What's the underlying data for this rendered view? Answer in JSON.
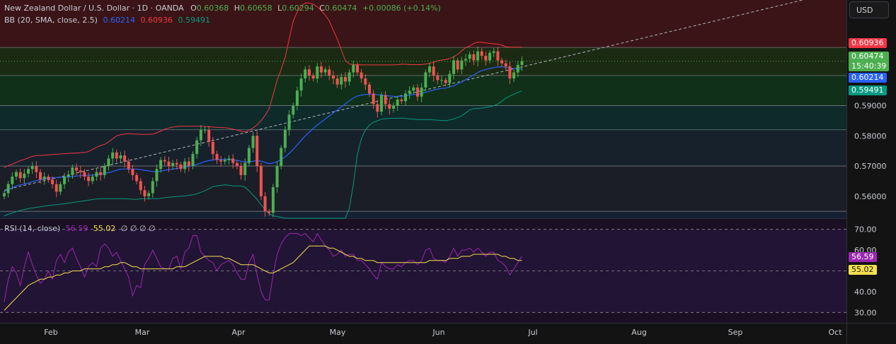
{
  "header": {
    "symbol_line": "New Zealand Dollar / U.S. Dollar · 1D · OANDA",
    "o_label": "O",
    "o_value": "0.60368",
    "h_label": "H",
    "h_value": "0.60658",
    "l_label": "L",
    "l_value": "0.60294",
    "c_label": "C",
    "c_value": "0.60474",
    "change": "+0.00086 (+0.14%)"
  },
  "bb_legend": {
    "label": "BB (20, SMA, close, 2.5)",
    "basis": "0.60214",
    "upper": "0.60936",
    "lower": "0.59491",
    "basis_color": "#2962ff",
    "upper_color": "#f23645",
    "lower_color": "#089981"
  },
  "rsi_legend": {
    "label": "RSI (14, close)",
    "rsi": "56.59",
    "ma": "55.02",
    "tail": "∅ ∅ ∅ ∅",
    "rsi_color": "#9c27b0",
    "ma_color": "#f5e050"
  },
  "currency_button": "USD",
  "price_tags": {
    "upper": "0.60936",
    "last": "0.60474",
    "countdown": "15:40:39",
    "basis": "0.60214",
    "lower": "0.59491",
    "rsi": "56.59",
    "rsi_ma": "55.02"
  },
  "colors": {
    "background": "#131313",
    "up": "#4caf50",
    "down": "#ef5350",
    "grid": "#2a2e39"
  },
  "chart_data": [
    {
      "type": "candlestick",
      "title": "New Zealand Dollar / U.S. Dollar · 1D · OANDA",
      "price_axis_ticks": [
        "0.56000",
        "0.57000",
        "0.58000",
        "0.59000"
      ],
      "ylim": [
        0.5527,
        0.625
      ],
      "time_axis_ticks": [
        "Feb",
        "Mar",
        "Apr",
        "May",
        "Jun",
        "Jul",
        "Aug",
        "Sep",
        "Oct"
      ],
      "zones": [
        {
          "from": 0.6093,
          "to": 0.625,
          "color": "#3a1416"
        },
        {
          "from": 0.6,
          "to": 0.6093,
          "color": "#1b2a13"
        },
        {
          "from": 0.59,
          "to": 0.6,
          "color": "#10301a"
        },
        {
          "from": 0.582,
          "to": 0.59,
          "color": "#0e2a2a"
        },
        {
          "from": 0.57,
          "to": 0.582,
          "color": "#16212b"
        },
        {
          "from": 0.555,
          "to": 0.57,
          "color": "#1b1e26"
        },
        {
          "from": 0.5527,
          "to": 0.555,
          "color": "#152032"
        }
      ],
      "horizontal_levels": [
        0.6093,
        0.6,
        0.59,
        0.582,
        0.57,
        0.555
      ],
      "trendline": {
        "from": [
          0,
          0.562
        ],
        "to": [
          199,
          0.625
        ]
      },
      "closes": [
        0.561,
        0.564,
        0.5665,
        0.568,
        0.566,
        0.5675,
        0.569,
        0.57,
        0.568,
        0.5655,
        0.5665,
        0.5655,
        0.564,
        0.5615,
        0.564,
        0.5665,
        0.567,
        0.5695,
        0.5685,
        0.568,
        0.5665,
        0.565,
        0.5665,
        0.568,
        0.567,
        0.57,
        0.5725,
        0.5745,
        0.5725,
        0.5735,
        0.5715,
        0.569,
        0.567,
        0.565,
        0.562,
        0.56,
        0.561,
        0.565,
        0.569,
        0.572,
        0.5715,
        0.57,
        0.571,
        0.5705,
        0.569,
        0.5715,
        0.57,
        0.574,
        0.5785,
        0.582,
        0.582,
        0.578,
        0.574,
        0.572,
        0.5715,
        0.572,
        0.5725,
        0.571,
        0.57,
        0.567,
        0.571,
        0.576,
        0.58,
        0.57,
        0.56,
        0.555,
        0.5545,
        0.563,
        0.57,
        0.576,
        0.582,
        0.587,
        0.59,
        0.595,
        0.599,
        0.602,
        0.6,
        0.599,
        0.603,
        0.601,
        0.602,
        0.6,
        0.599,
        0.597,
        0.5995,
        0.598,
        0.601,
        0.6035,
        0.601,
        0.599,
        0.597,
        0.594,
        0.5905,
        0.588,
        0.5935,
        0.5905,
        0.589,
        0.59,
        0.592,
        0.5915,
        0.594,
        0.595,
        0.596,
        0.593,
        0.596,
        0.601,
        0.603,
        0.6,
        0.5985,
        0.5985,
        0.5975,
        0.6005,
        0.605,
        0.602,
        0.605,
        0.6055,
        0.607,
        0.605,
        0.608,
        0.6065,
        0.605,
        0.6075,
        0.608,
        0.605,
        0.604,
        0.603,
        0.599,
        0.601,
        0.6035,
        0.6047
      ],
      "upper_band": [
        0.5695,
        0.5702,
        0.5706,
        0.5712,
        0.5718,
        0.5722,
        0.5727,
        0.5732,
        0.5735,
        0.5735,
        0.5736,
        0.5737,
        0.5738,
        0.5739,
        0.574,
        0.5741,
        0.5742,
        0.5743,
        0.5743,
        0.5744,
        0.5745,
        0.5748,
        0.5755,
        0.5762,
        0.5768,
        0.5772,
        0.578,
        0.579,
        0.58,
        0.5804,
        0.5806,
        0.5807,
        0.5806,
        0.5806,
        0.5805,
        0.5805,
        0.5805,
        0.5806,
        0.581,
        0.5816,
        0.5822,
        0.5826,
        0.5829,
        0.5831,
        0.5832,
        0.5832,
        0.5832,
        0.5832,
        0.5832,
        0.5832,
        0.5831,
        0.583,
        0.5829,
        0.5828,
        0.5827,
        0.5827,
        0.5825,
        0.5822,
        0.5819,
        0.5816,
        0.5813,
        0.5818,
        0.5826,
        0.5836,
        0.585,
        0.5868,
        0.589,
        0.5935,
        0.5985,
        0.602,
        0.606,
        0.612,
        0.618,
        0.621,
        0.623,
        0.624,
        0.624,
        0.6236,
        0.6228,
        0.6215,
        0.62,
        0.618,
        0.615,
        0.612,
        0.6085,
        0.605,
        0.6038,
        0.6036,
        0.6036,
        0.6035,
        0.6035,
        0.6035,
        0.6035,
        0.6035,
        0.6035,
        0.6035,
        0.6035,
        0.6035,
        0.6036,
        0.6037,
        0.6037,
        0.6036,
        0.6036,
        0.6036,
        0.6036,
        0.6038,
        0.604,
        0.6044,
        0.6049,
        0.6051,
        0.6053,
        0.6056,
        0.6062,
        0.607,
        0.6082,
        0.6092,
        0.6098,
        0.6106,
        0.611,
        0.611,
        0.6108,
        0.6106,
        0.6105,
        0.6104,
        0.61,
        0.6095,
        0.6094,
        0.6094,
        0.6094,
        0.6094
      ],
      "basis": [
        0.5615,
        0.5622,
        0.5628,
        0.5634,
        0.5638,
        0.564,
        0.5644,
        0.5648,
        0.5652,
        0.5655,
        0.5658,
        0.566,
        0.5661,
        0.5662,
        0.5663,
        0.5663,
        0.5664,
        0.5665,
        0.5667,
        0.5668,
        0.5669,
        0.5669,
        0.567,
        0.5672,
        0.5674,
        0.5676,
        0.5678,
        0.5682,
        0.5686,
        0.569,
        0.569,
        0.569,
        0.569,
        0.569,
        0.5688,
        0.5686,
        0.5684,
        0.5682,
        0.568,
        0.5683,
        0.5686,
        0.5688,
        0.569,
        0.5692,
        0.5694,
        0.5697,
        0.5699,
        0.5701,
        0.5705,
        0.571,
        0.5715,
        0.5718,
        0.572,
        0.5722,
        0.5722,
        0.5722,
        0.5721,
        0.572,
        0.5719,
        0.5716,
        0.5713,
        0.5714,
        0.5716,
        0.5718,
        0.5716,
        0.5712,
        0.5708,
        0.571,
        0.5715,
        0.5722,
        0.573,
        0.5742,
        0.5755,
        0.577,
        0.5785,
        0.58,
        0.5812,
        0.5824,
        0.5836,
        0.5846,
        0.5856,
        0.5866,
        0.5876,
        0.5886,
        0.5896,
        0.5906,
        0.5916,
        0.5926,
        0.5932,
        0.5935,
        0.5937,
        0.5938,
        0.5938,
        0.5936,
        0.5935,
        0.5934,
        0.5932,
        0.5931,
        0.593,
        0.5931,
        0.5933,
        0.5935,
        0.5937,
        0.5938,
        0.594,
        0.5944,
        0.5948,
        0.5952,
        0.5955,
        0.5957,
        0.5958,
        0.5962,
        0.5966,
        0.5972,
        0.5978,
        0.5986,
        0.5994,
        0.6002,
        0.601,
        0.6016,
        0.602,
        0.6023,
        0.6026,
        0.6028,
        0.6029,
        0.6027,
        0.6025,
        0.6023,
        0.6022,
        0.6021
      ],
      "lower_band": [
        0.5535,
        0.554,
        0.5545,
        0.5549,
        0.5553,
        0.5556,
        0.5559,
        0.5561,
        0.5563,
        0.5565,
        0.5567,
        0.5569,
        0.5571,
        0.5572,
        0.5573,
        0.5575,
        0.5577,
        0.5579,
        0.5581,
        0.5583,
        0.5585,
        0.5587,
        0.5589,
        0.5591,
        0.5592,
        0.5592,
        0.5592,
        0.5592,
        0.5592,
        0.5592,
        0.5592,
        0.5591,
        0.559,
        0.559,
        0.5591,
        0.5592,
        0.5592,
        0.5592,
        0.5592,
        0.5593,
        0.5595,
        0.5597,
        0.5598,
        0.5599,
        0.56,
        0.5601,
        0.5603,
        0.5605,
        0.5608,
        0.5613,
        0.5618,
        0.5625,
        0.5632,
        0.5634,
        0.5636,
        0.5638,
        0.5636,
        0.5634,
        0.5634,
        0.5634,
        0.563,
        0.5618,
        0.5604,
        0.559,
        0.5572,
        0.5556,
        0.5542,
        0.5535,
        0.5533,
        0.553,
        0.5528,
        0.5527,
        0.5527,
        0.5527,
        0.5527,
        0.5527,
        0.5527,
        0.5527,
        0.5527,
        0.5527,
        0.5527,
        0.5527,
        0.5527,
        0.5527,
        0.5527,
        0.5527,
        0.556,
        0.564,
        0.574,
        0.579,
        0.582,
        0.5835,
        0.5845,
        0.585,
        0.5855,
        0.5857,
        0.5858,
        0.5858,
        0.5858,
        0.5859,
        0.5858,
        0.5856,
        0.5855,
        0.5854,
        0.5854,
        0.5854,
        0.5854,
        0.5853,
        0.5852,
        0.5851,
        0.585,
        0.5853,
        0.5856,
        0.5861,
        0.5866,
        0.5876,
        0.5886,
        0.589,
        0.5891,
        0.5892,
        0.5894,
        0.5896,
        0.59,
        0.5905,
        0.5915,
        0.5925,
        0.5932,
        0.5938,
        0.5944,
        0.5949
      ]
    },
    {
      "type": "line",
      "title": "RSI (14, close)",
      "ylim": [
        25,
        75
      ],
      "y_ticks": [
        "70.00",
        "60.00",
        "40.00",
        "30.00"
      ],
      "reference_lines": [
        70,
        50,
        30
      ],
      "series": [
        {
          "name": "RSI",
          "color": "#9c27b0",
          "values": [
            35,
            46,
            52,
            49,
            43,
            52,
            59,
            53,
            48,
            44,
            46,
            50,
            46,
            55,
            58,
            54,
            59,
            61,
            56,
            52,
            47,
            52,
            54,
            52,
            61,
            63,
            61,
            57,
            59,
            55,
            51,
            47,
            38,
            43,
            42,
            53,
            56,
            60,
            56,
            52,
            51,
            51,
            56,
            57,
            51,
            59,
            61,
            67,
            67,
            59,
            57,
            55,
            54,
            50,
            53,
            54,
            55,
            53,
            49,
            46,
            46,
            54,
            58,
            48,
            40,
            36,
            36,
            48,
            58,
            63,
            66,
            68,
            68,
            68,
            67,
            68,
            66,
            64,
            68,
            65,
            62,
            60,
            57,
            58,
            60,
            57,
            58,
            58,
            55,
            55,
            53,
            51,
            48,
            46,
            54,
            52,
            51,
            51,
            53,
            52,
            54,
            55,
            55,
            53,
            55,
            60,
            61,
            56,
            55,
            55,
            54,
            57,
            61,
            57,
            60,
            60,
            61,
            59,
            61,
            59,
            57,
            59,
            59,
            55,
            54,
            52,
            48,
            51,
            54,
            57
          ]
        },
        {
          "name": "RSI-based MA",
          "color": "#f5e050",
          "values": [
            31,
            33,
            35,
            37,
            39,
            41,
            43,
            44,
            45,
            46,
            46,
            47,
            47,
            48,
            48,
            49,
            49,
            50,
            50,
            50,
            51,
            51,
            51,
            51,
            51,
            52,
            52,
            53,
            53,
            54,
            54,
            53,
            52,
            52,
            51,
            51,
            51,
            51,
            51,
            51,
            51,
            51,
            51,
            52,
            52,
            52,
            53,
            54,
            55,
            56,
            57,
            57,
            57,
            57,
            57,
            56,
            56,
            55,
            54,
            53,
            53,
            53,
            53,
            52,
            51,
            50,
            49,
            49,
            50,
            51,
            52,
            53,
            54,
            56,
            58,
            60,
            62,
            62,
            62,
            62,
            62,
            61,
            61,
            60,
            59,
            58,
            57,
            57,
            56,
            56,
            55,
            55,
            55,
            54,
            54,
            54,
            54,
            54,
            54,
            54,
            54,
            54,
            54,
            54,
            54,
            54,
            55,
            55,
            55,
            55,
            55,
            56,
            56,
            56,
            57,
            57,
            57,
            58,
            58,
            58,
            58,
            58,
            58,
            58,
            57,
            57,
            56,
            56,
            55,
            55
          ]
        }
      ]
    }
  ]
}
